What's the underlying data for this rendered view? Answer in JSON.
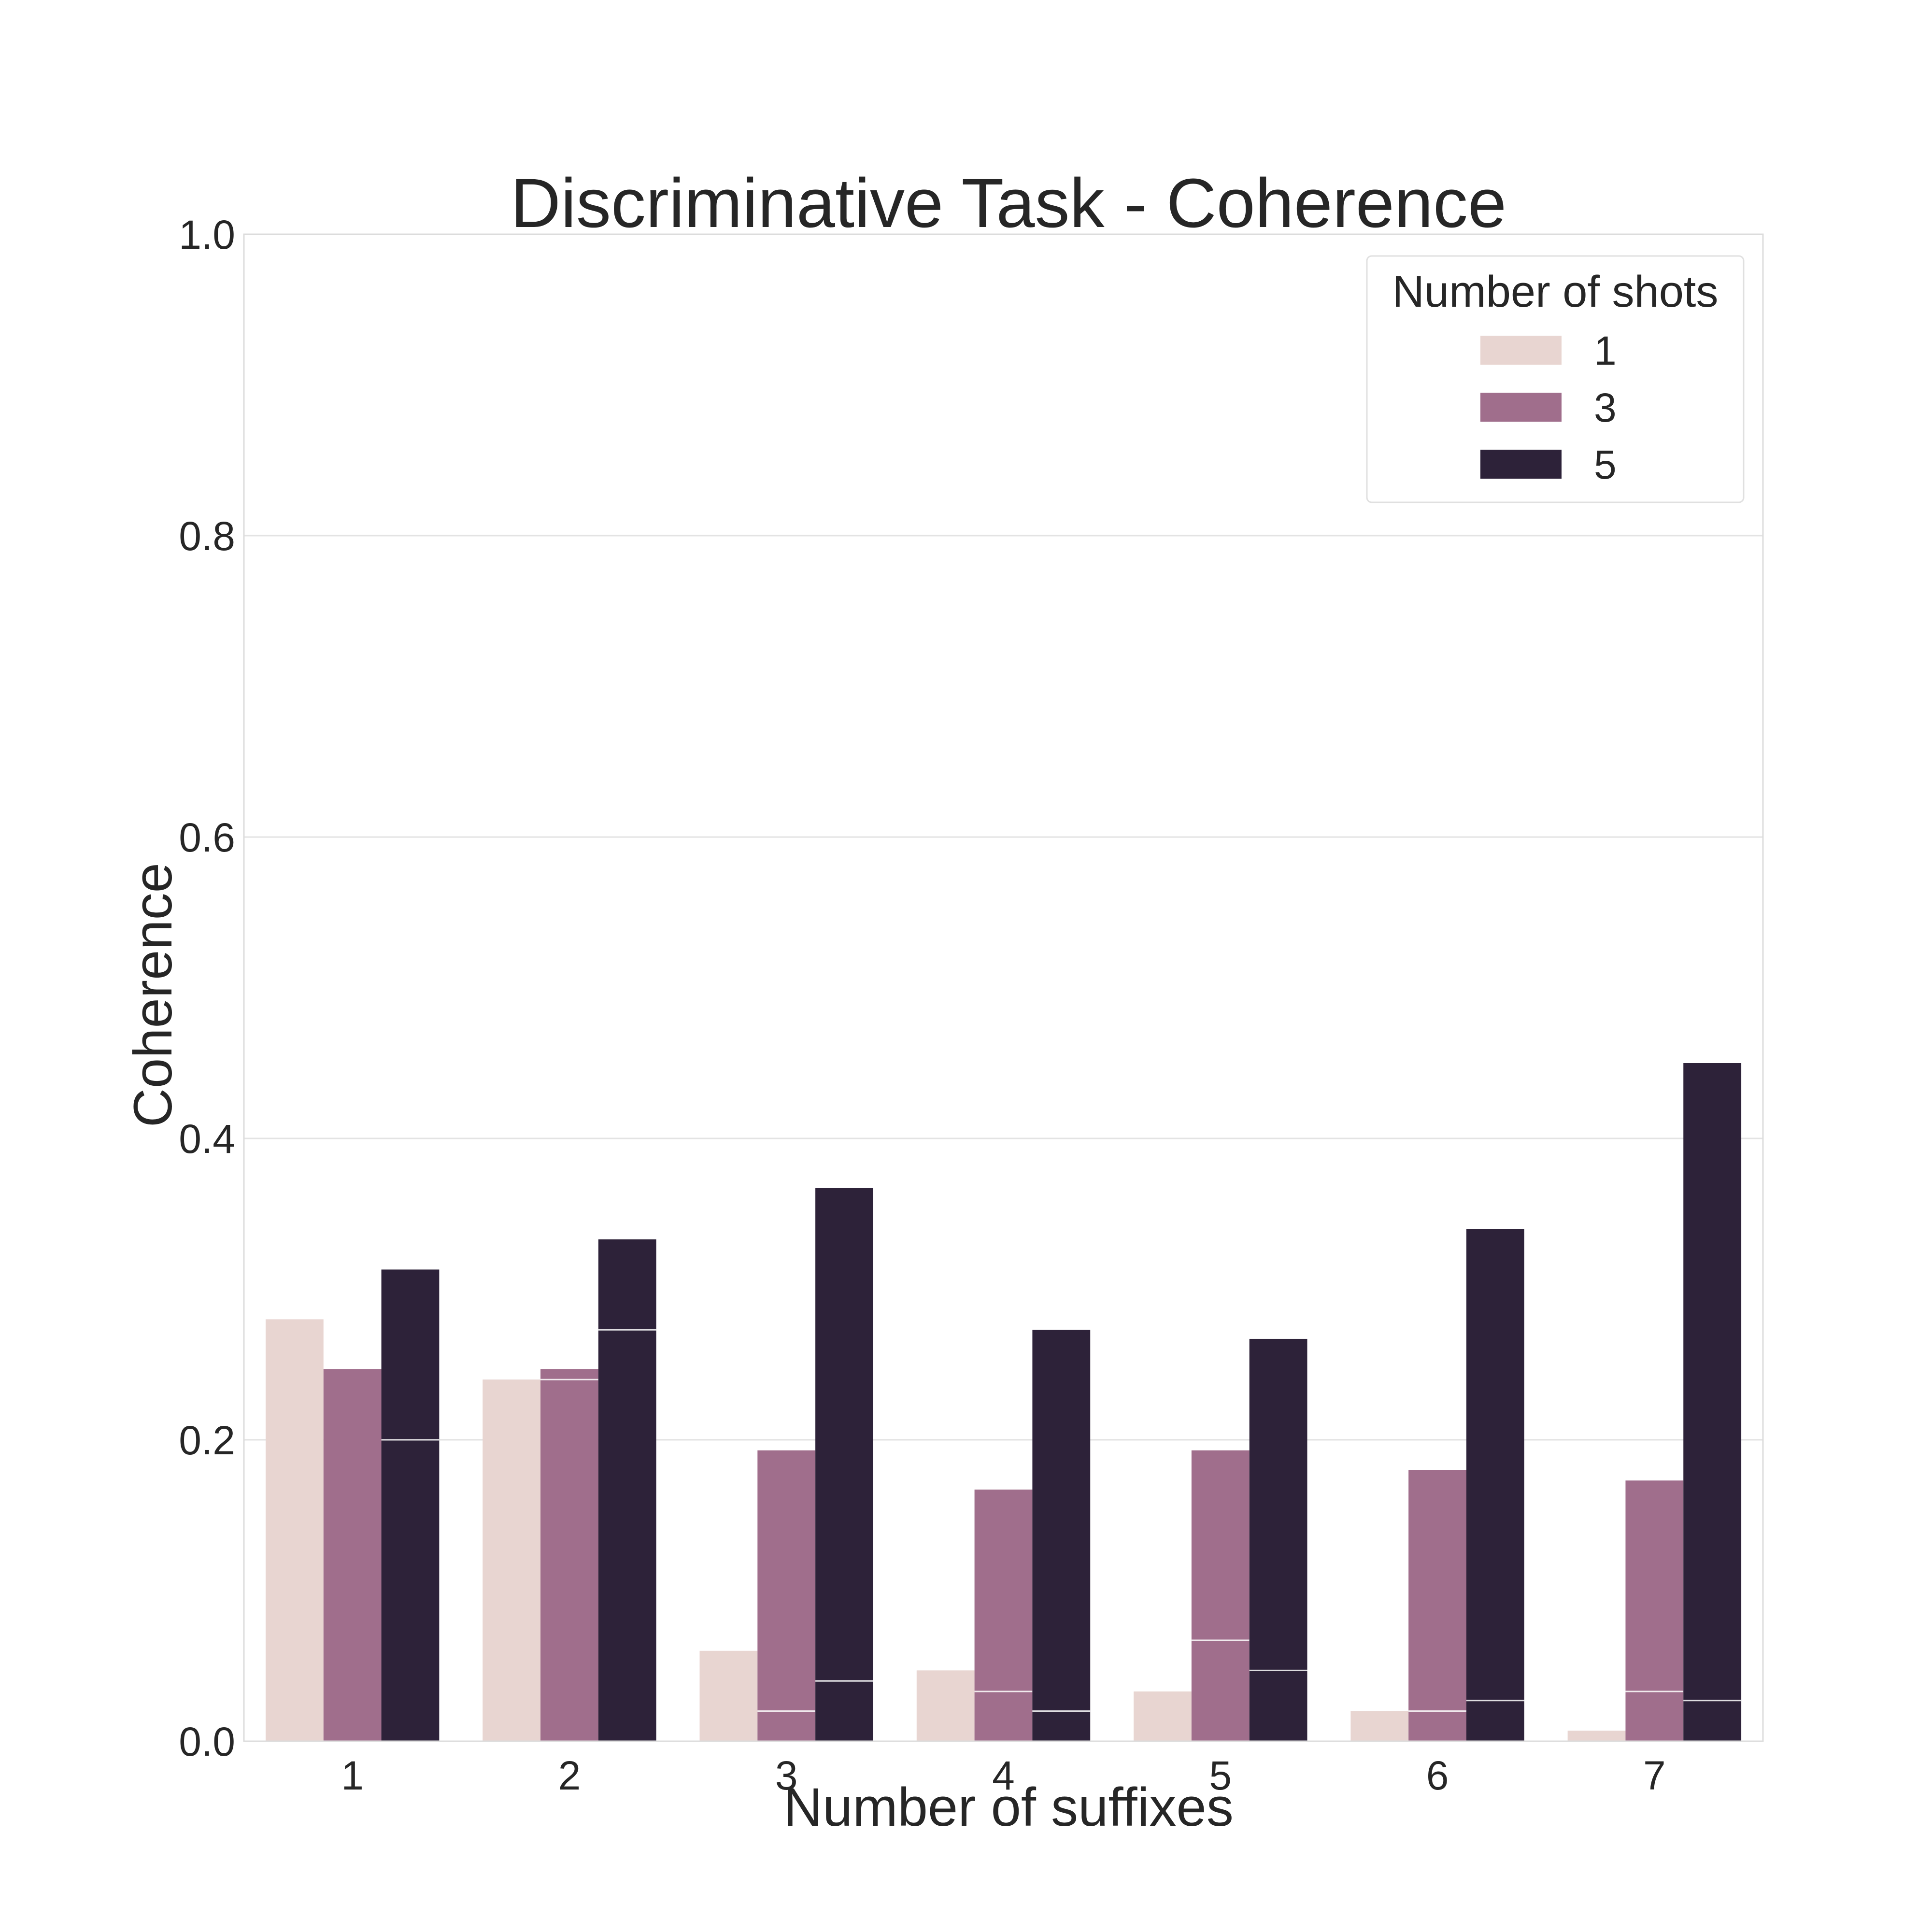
{
  "chart_data": {
    "type": "bar",
    "title": "Discriminative Task - Coherence",
    "xlabel": "Number of suffixes",
    "ylabel": "Coherence",
    "categories": [
      "1",
      "2",
      "3",
      "4",
      "5",
      "6",
      "7"
    ],
    "ylim": [
      0,
      1.0
    ],
    "yticks": [
      "0.0",
      "0.2",
      "0.4",
      "0.6",
      "0.8",
      "1.0"
    ],
    "grid": true,
    "legend": {
      "title": "Number of shots",
      "placement": "top-right"
    },
    "series": [
      {
        "name": "1",
        "color": "#e8d5d1",
        "values": [
          0.28,
          0.24,
          0.06,
          0.047,
          0.033,
          0.02,
          0.007
        ],
        "inner_values": [
          null,
          null,
          null,
          null,
          null,
          null,
          null
        ]
      },
      {
        "name": "3",
        "color": "#a06e8c",
        "values": [
          0.247,
          0.247,
          0.193,
          0.167,
          0.193,
          0.18,
          0.173
        ],
        "inner_values": [
          null,
          0.24,
          0.02,
          0.033,
          0.067,
          0.02,
          0.033
        ]
      },
      {
        "name": "5",
        "color": "#2d2239",
        "values": [
          0.313,
          0.333,
          0.367,
          0.273,
          0.267,
          0.34,
          0.45
        ],
        "inner_values": [
          0.2,
          0.273,
          0.04,
          0.02,
          0.047,
          0.027,
          0.027
        ]
      }
    ]
  }
}
